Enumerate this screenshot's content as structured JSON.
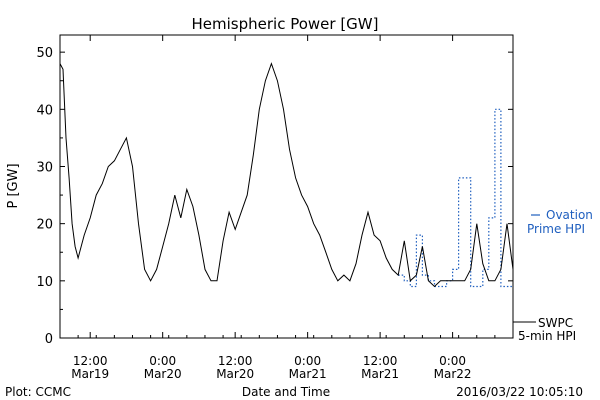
{
  "chart_data": {
    "type": "line",
    "title": "Hemispheric Power [GW]",
    "xlabel": "Date and Time",
    "ylabel": "P [GW]",
    "ylim": [
      0,
      53
    ],
    "yticks": [
      0,
      10,
      20,
      30,
      40,
      50
    ],
    "xlim": [
      "2016-03-19T07:00",
      "2016-03-22T10:00"
    ],
    "xticks": [
      {
        "time": "2016-03-19T12:00",
        "line1": "12:00",
        "line2": "Mar19"
      },
      {
        "time": "2016-03-20T00:00",
        "line1": "0:00",
        "line2": "Mar20"
      },
      {
        "time": "2016-03-20T12:00",
        "line1": "12:00",
        "line2": "Mar20"
      },
      {
        "time": "2016-03-21T00:00",
        "line1": "0:00",
        "line2": "Mar21"
      },
      {
        "time": "2016-03-21T12:00",
        "line1": "12:00",
        "line2": "Mar21"
      },
      {
        "time": "2016-03-22T00:00",
        "line1": "0:00",
        "line2": "Mar22"
      }
    ],
    "grid": false,
    "legend_position": "right",
    "series": [
      {
        "name": "SWPC 5-min HPI",
        "label_lines": [
          "SWPC",
          "5-min HPI"
        ],
        "color": "#000000",
        "style": "solid",
        "points": [
          [
            "2016-03-19T07:00",
            48
          ],
          [
            "2016-03-19T07:30",
            47
          ],
          [
            "2016-03-19T08:00",
            35
          ],
          [
            "2016-03-19T08:30",
            28
          ],
          [
            "2016-03-19T09:00",
            20
          ],
          [
            "2016-03-19T09:30",
            16
          ],
          [
            "2016-03-19T10:00",
            14
          ],
          [
            "2016-03-19T11:00",
            18
          ],
          [
            "2016-03-19T12:00",
            21
          ],
          [
            "2016-03-19T13:00",
            25
          ],
          [
            "2016-03-19T14:00",
            27
          ],
          [
            "2016-03-19T15:00",
            30
          ],
          [
            "2016-03-19T16:00",
            31
          ],
          [
            "2016-03-19T17:00",
            33
          ],
          [
            "2016-03-19T18:00",
            35
          ],
          [
            "2016-03-19T19:00",
            30
          ],
          [
            "2016-03-19T20:00",
            20
          ],
          [
            "2016-03-19T21:00",
            12
          ],
          [
            "2016-03-19T22:00",
            10
          ],
          [
            "2016-03-19T23:00",
            12
          ],
          [
            "2016-03-20T00:00",
            16
          ],
          [
            "2016-03-20T01:00",
            20
          ],
          [
            "2016-03-20T02:00",
            25
          ],
          [
            "2016-03-20T03:00",
            21
          ],
          [
            "2016-03-20T04:00",
            26
          ],
          [
            "2016-03-20T05:00",
            23
          ],
          [
            "2016-03-20T06:00",
            18
          ],
          [
            "2016-03-20T07:00",
            12
          ],
          [
            "2016-03-20T08:00",
            10
          ],
          [
            "2016-03-20T09:00",
            10
          ],
          [
            "2016-03-20T10:00",
            17
          ],
          [
            "2016-03-20T11:00",
            22
          ],
          [
            "2016-03-20T12:00",
            19
          ],
          [
            "2016-03-20T13:00",
            22
          ],
          [
            "2016-03-20T14:00",
            25
          ],
          [
            "2016-03-20T15:00",
            32
          ],
          [
            "2016-03-20T16:00",
            40
          ],
          [
            "2016-03-20T17:00",
            45
          ],
          [
            "2016-03-20T18:00",
            48
          ],
          [
            "2016-03-20T19:00",
            45
          ],
          [
            "2016-03-20T20:00",
            40
          ],
          [
            "2016-03-20T21:00",
            33
          ],
          [
            "2016-03-20T22:00",
            28
          ],
          [
            "2016-03-20T23:00",
            25
          ],
          [
            "2016-03-21T00:00",
            23
          ],
          [
            "2016-03-21T01:00",
            20
          ],
          [
            "2016-03-21T02:00",
            18
          ],
          [
            "2016-03-21T03:00",
            15
          ],
          [
            "2016-03-21T04:00",
            12
          ],
          [
            "2016-03-21T05:00",
            10
          ],
          [
            "2016-03-21T06:00",
            11
          ],
          [
            "2016-03-21T07:00",
            10
          ],
          [
            "2016-03-21T08:00",
            13
          ],
          [
            "2016-03-21T09:00",
            18
          ],
          [
            "2016-03-21T10:00",
            22
          ],
          [
            "2016-03-21T11:00",
            18
          ],
          [
            "2016-03-21T12:00",
            17
          ],
          [
            "2016-03-21T13:00",
            14
          ],
          [
            "2016-03-21T14:00",
            12
          ],
          [
            "2016-03-21T15:00",
            11
          ],
          [
            "2016-03-21T16:00",
            17
          ],
          [
            "2016-03-21T17:00",
            10
          ],
          [
            "2016-03-21T18:00",
            11
          ],
          [
            "2016-03-21T19:00",
            16
          ],
          [
            "2016-03-21T20:00",
            10
          ],
          [
            "2016-03-21T21:00",
            9
          ],
          [
            "2016-03-21T22:00",
            10
          ],
          [
            "2016-03-21T23:00",
            10
          ],
          [
            "2016-03-22T00:00",
            10
          ],
          [
            "2016-03-22T01:00",
            10
          ],
          [
            "2016-03-22T02:00",
            10
          ],
          [
            "2016-03-22T03:00",
            12
          ],
          [
            "2016-03-22T04:00",
            20
          ],
          [
            "2016-03-22T05:00",
            13
          ],
          [
            "2016-03-22T06:00",
            10
          ],
          [
            "2016-03-22T07:00",
            10
          ],
          [
            "2016-03-22T08:00",
            12
          ],
          [
            "2016-03-22T09:00",
            20
          ],
          [
            "2016-03-22T10:00",
            12
          ]
        ]
      },
      {
        "name": "Ovation Prime HPI",
        "label_lines": [
          "Ovation",
          "Prime HPI"
        ],
        "color": "#1f5fbf",
        "style": "dotted",
        "step": true,
        "points": [
          [
            "2016-03-21T15:00",
            11
          ],
          [
            "2016-03-21T16:00",
            10
          ],
          [
            "2016-03-21T17:00",
            9
          ],
          [
            "2016-03-21T18:00",
            18
          ],
          [
            "2016-03-21T19:00",
            11
          ],
          [
            "2016-03-21T20:00",
            10
          ],
          [
            "2016-03-21T21:00",
            9
          ],
          [
            "2016-03-21T23:00",
            10
          ],
          [
            "2016-03-22T00:00",
            12
          ],
          [
            "2016-03-22T01:00",
            28
          ],
          [
            "2016-03-22T03:00",
            9
          ],
          [
            "2016-03-22T05:00",
            12
          ],
          [
            "2016-03-22T06:00",
            21
          ],
          [
            "2016-03-22T07:00",
            40
          ],
          [
            "2016-03-22T08:00",
            9
          ],
          [
            "2016-03-22T09:00",
            9
          ],
          [
            "2016-03-22T10:00",
            9
          ]
        ]
      }
    ]
  },
  "footer": {
    "plot_credit": "Plot: CCMC",
    "timestamp": "2016/03/22 10:05:10"
  }
}
